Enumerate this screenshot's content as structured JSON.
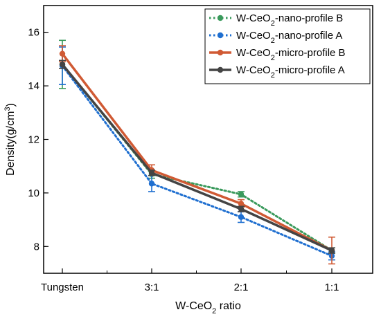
{
  "chart_data": {
    "type": "line",
    "categories": [
      "Tungsten",
      "3:1",
      "2:1",
      "1:1"
    ],
    "xlabel": {
      "pre": "W-CeO",
      "sub": "2",
      "post": " ratio"
    },
    "ylabel": {
      "pre": "Density(g/cm",
      "sup": "3",
      "post": ")"
    },
    "ylim": [
      7,
      17
    ],
    "yticks": [
      8,
      10,
      12,
      14,
      16
    ],
    "grid": false,
    "legend_position": "top-right",
    "series": [
      {
        "name": {
          "pre": "W-CeO",
          "sub": "2",
          "post": "-nano-profile B"
        },
        "color": "#3a9a5c",
        "dash": "dotted",
        "values": [
          14.8,
          10.7,
          9.95,
          7.85
        ],
        "errors": [
          0.9,
          0.15,
          0.1,
          0.1
        ]
      },
      {
        "name": {
          "pre": "W-CeO",
          "sub": "2",
          "post": "-nano-profile A"
        },
        "color": "#1f6fd0",
        "dash": "dotted",
        "values": [
          14.75,
          10.35,
          9.1,
          7.65
        ],
        "errors": [
          0.7,
          0.3,
          0.2,
          0.15
        ]
      },
      {
        "name": {
          "pre": "W-CeO",
          "sub": "2",
          "post": "-micro-profile B"
        },
        "color": "#d05a34",
        "dash": "solid",
        "values": [
          15.2,
          10.85,
          9.6,
          7.85
        ],
        "errors": [
          0.3,
          0.2,
          0.15,
          0.5
        ]
      },
      {
        "name": {
          "pre": "W-CeO",
          "sub": "2",
          "post": "-micro-profile A"
        },
        "color": "#444444",
        "dash": "solid",
        "values": [
          14.8,
          10.75,
          9.4,
          7.85
        ],
        "errors": [
          0.15,
          0.1,
          0.1,
          0.1
        ]
      }
    ]
  }
}
